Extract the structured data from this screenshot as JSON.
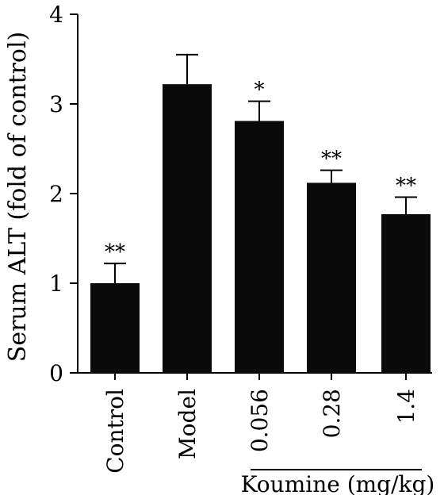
{
  "chart_data": {
    "type": "bar",
    "categories": [
      "Control",
      "Model",
      "0.056",
      "0.28",
      "1.4"
    ],
    "values": [
      1.0,
      3.22,
      2.81,
      2.12,
      1.77
    ],
    "errors": [
      0.22,
      0.33,
      0.22,
      0.14,
      0.19
    ],
    "significance": [
      "**",
      "",
      "*",
      "**",
      "**"
    ],
    "ylabel": "Serum ALT (fold of control)",
    "ylim": [
      0,
      4
    ],
    "yticks": [
      "0",
      "1",
      "2",
      "3",
      "4"
    ],
    "group_label": "Koumine (mg/kg)",
    "bar_color": "#0a0a0a",
    "grid": false,
    "legend": "none"
  }
}
